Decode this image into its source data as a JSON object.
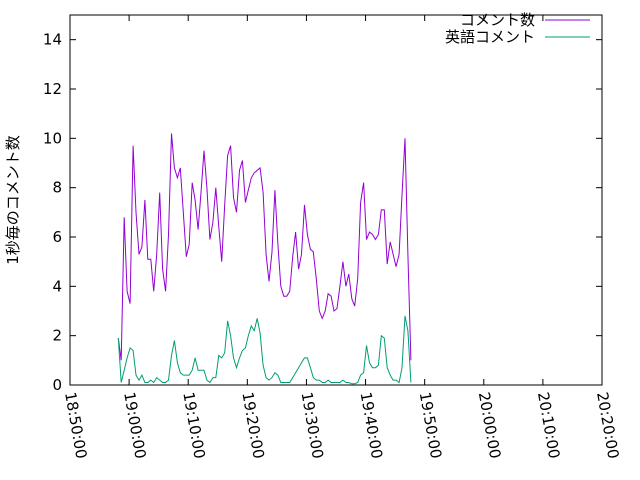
{
  "chart_data": {
    "type": "line",
    "ylabel": "1秒毎のコメント数",
    "xlabel": "",
    "ylim": [
      0,
      15
    ],
    "xlim": [
      "18:50:00",
      "20:20:00"
    ],
    "y_ticks": [
      "0",
      "2",
      "4",
      "6",
      "8",
      "10",
      "12",
      "14"
    ],
    "x_ticks": [
      "18:50:00",
      "19:00:00",
      "19:10:00",
      "19:20:00",
      "19:30:00",
      "19:40:00",
      "19:50:00",
      "20:00:00",
      "20:10:00",
      "20:20:00"
    ],
    "legend_position": "top-right",
    "series": [
      {
        "name": "コメント数",
        "color": "#9400d3",
        "points": [
          [
            "18:58:10",
            1.9
          ],
          [
            "18:58:40",
            1.0
          ],
          [
            "18:59:10",
            6.8
          ],
          [
            "18:59:40",
            3.8
          ],
          [
            "19:00:10",
            3.3
          ],
          [
            "19:00:40",
            9.7
          ],
          [
            "19:01:10",
            7.0
          ],
          [
            "19:01:40",
            5.3
          ],
          [
            "19:02:10",
            5.6
          ],
          [
            "19:02:40",
            7.5
          ],
          [
            "19:03:10",
            5.1
          ],
          [
            "19:03:40",
            5.1
          ],
          [
            "19:04:10",
            3.8
          ],
          [
            "19:04:40",
            5.3
          ],
          [
            "19:05:10",
            7.8
          ],
          [
            "19:05:40",
            4.7
          ],
          [
            "19:06:10",
            3.8
          ],
          [
            "19:06:40",
            6.1
          ],
          [
            "19:07:10",
            10.2
          ],
          [
            "19:07:40",
            8.8
          ],
          [
            "19:08:10",
            8.4
          ],
          [
            "19:08:40",
            8.8
          ],
          [
            "19:09:10",
            7.0
          ],
          [
            "19:09:40",
            5.2
          ],
          [
            "19:10:10",
            5.7
          ],
          [
            "19:10:40",
            8.2
          ],
          [
            "19:11:10",
            7.5
          ],
          [
            "19:11:40",
            6.3
          ],
          [
            "19:12:10",
            7.8
          ],
          [
            "19:12:40",
            9.5
          ],
          [
            "19:13:10",
            8.0
          ],
          [
            "19:13:40",
            5.9
          ],
          [
            "19:14:10",
            6.6
          ],
          [
            "19:14:40",
            8.0
          ],
          [
            "19:15:10",
            6.4
          ],
          [
            "19:15:40",
            5.0
          ],
          [
            "19:16:10",
            7.3
          ],
          [
            "19:16:40",
            9.3
          ],
          [
            "19:17:10",
            9.7
          ],
          [
            "19:17:40",
            7.6
          ],
          [
            "19:18:10",
            7.0
          ],
          [
            "19:18:40",
            8.7
          ],
          [
            "19:19:10",
            9.1
          ],
          [
            "19:19:40",
            7.4
          ],
          [
            "19:20:10",
            7.9
          ],
          [
            "19:20:40",
            8.4
          ],
          [
            "19:21:10",
            8.6
          ],
          [
            "19:21:40",
            8.7
          ],
          [
            "19:22:10",
            8.8
          ],
          [
            "19:22:40",
            7.8
          ],
          [
            "19:23:10",
            5.3
          ],
          [
            "19:23:40",
            4.2
          ],
          [
            "19:24:10",
            5.4
          ],
          [
            "19:24:40",
            7.9
          ],
          [
            "19:25:10",
            5.7
          ],
          [
            "19:25:40",
            4.0
          ],
          [
            "19:26:10",
            3.6
          ],
          [
            "19:26:40",
            3.6
          ],
          [
            "19:27:10",
            3.8
          ],
          [
            "19:27:40",
            5.2
          ],
          [
            "19:28:10",
            6.2
          ],
          [
            "19:28:40",
            4.7
          ],
          [
            "19:29:10",
            5.3
          ],
          [
            "19:29:40",
            7.3
          ],
          [
            "19:30:10",
            6.1
          ],
          [
            "19:30:40",
            5.5
          ],
          [
            "19:31:10",
            5.4
          ],
          [
            "19:31:40",
            4.3
          ],
          [
            "19:32:10",
            3.0
          ],
          [
            "19:32:40",
            2.7
          ],
          [
            "19:33:10",
            3.0
          ],
          [
            "19:33:40",
            3.7
          ],
          [
            "19:34:10",
            3.6
          ],
          [
            "19:34:40",
            3.0
          ],
          [
            "19:35:10",
            3.1
          ],
          [
            "19:35:40",
            4.0
          ],
          [
            "19:36:10",
            5.0
          ],
          [
            "19:36:40",
            4.0
          ],
          [
            "19:37:10",
            4.5
          ],
          [
            "19:37:40",
            3.5
          ],
          [
            "19:38:10",
            3.2
          ],
          [
            "19:38:40",
            4.3
          ],
          [
            "19:39:10",
            7.4
          ],
          [
            "19:39:40",
            8.2
          ],
          [
            "19:40:10",
            5.9
          ],
          [
            "19:40:40",
            6.2
          ],
          [
            "19:41:10",
            6.1
          ],
          [
            "19:41:40",
            5.9
          ],
          [
            "19:42:10",
            6.1
          ],
          [
            "19:42:40",
            7.1
          ],
          [
            "19:43:10",
            7.1
          ],
          [
            "19:43:40",
            4.9
          ],
          [
            "19:44:10",
            5.8
          ],
          [
            "19:44:40",
            5.3
          ],
          [
            "19:45:10",
            4.8
          ],
          [
            "19:45:40",
            5.3
          ],
          [
            "19:46:10",
            7.7
          ],
          [
            "19:46:40",
            10.0
          ],
          [
            "19:47:10",
            5.3
          ],
          [
            "19:47:40",
            1.0
          ]
        ]
      },
      {
        "name": "英語コメント",
        "color": "#009e73",
        "points": [
          [
            "18:58:10",
            1.9
          ],
          [
            "18:58:40",
            0.1
          ],
          [
            "18:59:10",
            0.6
          ],
          [
            "18:59:40",
            1.1
          ],
          [
            "19:00:10",
            1.5
          ],
          [
            "19:00:40",
            1.4
          ],
          [
            "19:01:10",
            0.4
          ],
          [
            "19:01:40",
            0.2
          ],
          [
            "19:02:10",
            0.4
          ],
          [
            "19:02:40",
            0.1
          ],
          [
            "19:03:10",
            0.1
          ],
          [
            "19:03:40",
            0.2
          ],
          [
            "19:04:10",
            0.1
          ],
          [
            "19:04:40",
            0.3
          ],
          [
            "19:05:10",
            0.2
          ],
          [
            "19:05:40",
            0.1
          ],
          [
            "19:06:10",
            0.1
          ],
          [
            "19:06:40",
            0.2
          ],
          [
            "19:07:10",
            1.2
          ],
          [
            "19:07:40",
            1.8
          ],
          [
            "19:08:10",
            0.9
          ],
          [
            "19:08:40",
            0.5
          ],
          [
            "19:09:10",
            0.4
          ],
          [
            "19:09:40",
            0.4
          ],
          [
            "19:10:10",
            0.4
          ],
          [
            "19:10:40",
            0.6
          ],
          [
            "19:11:10",
            1.1
          ],
          [
            "19:11:40",
            0.6
          ],
          [
            "19:12:10",
            0.6
          ],
          [
            "19:12:40",
            0.6
          ],
          [
            "19:13:10",
            0.2
          ],
          [
            "19:13:40",
            0.1
          ],
          [
            "19:14:10",
            0.3
          ],
          [
            "19:14:40",
            0.3
          ],
          [
            "19:15:10",
            1.2
          ],
          [
            "19:15:40",
            1.1
          ],
          [
            "19:16:10",
            1.3
          ],
          [
            "19:16:40",
            2.6
          ],
          [
            "19:17:10",
            2.0
          ],
          [
            "19:17:40",
            1.1
          ],
          [
            "19:18:10",
            0.7
          ],
          [
            "19:18:40",
            1.1
          ],
          [
            "19:19:10",
            1.4
          ],
          [
            "19:19:40",
            1.5
          ],
          [
            "19:20:10",
            2.0
          ],
          [
            "19:20:40",
            2.4
          ],
          [
            "19:21:10",
            2.2
          ],
          [
            "19:21:40",
            2.7
          ],
          [
            "19:22:10",
            2.1
          ],
          [
            "19:22:40",
            0.8
          ],
          [
            "19:23:10",
            0.3
          ],
          [
            "19:23:40",
            0.2
          ],
          [
            "19:24:10",
            0.3
          ],
          [
            "19:24:40",
            0.5
          ],
          [
            "19:25:10",
            0.4
          ],
          [
            "19:25:40",
            0.1
          ],
          [
            "19:26:10",
            0.1
          ],
          [
            "19:26:40",
            0.1
          ],
          [
            "19:27:10",
            0.1
          ],
          [
            "19:27:40",
            0.3
          ],
          [
            "19:28:10",
            0.5
          ],
          [
            "19:28:40",
            0.7
          ],
          [
            "19:29:10",
            0.9
          ],
          [
            "19:29:40",
            1.1
          ],
          [
            "19:30:10",
            1.1
          ],
          [
            "19:30:40",
            0.7
          ],
          [
            "19:31:10",
            0.3
          ],
          [
            "19:31:40",
            0.2
          ],
          [
            "19:32:10",
            0.2
          ],
          [
            "19:32:40",
            0.1
          ],
          [
            "19:33:10",
            0.1
          ],
          [
            "19:33:40",
            0.2
          ],
          [
            "19:34:10",
            0.1
          ],
          [
            "19:34:40",
            0.1
          ],
          [
            "19:35:10",
            0.1
          ],
          [
            "19:35:40",
            0.1
          ],
          [
            "19:36:10",
            0.2
          ],
          [
            "19:36:40",
            0.1
          ],
          [
            "19:37:10",
            0.1
          ],
          [
            "19:37:40",
            0.05
          ],
          [
            "19:38:10",
            0.05
          ],
          [
            "19:38:40",
            0.1
          ],
          [
            "19:39:10",
            0.4
          ],
          [
            "19:39:40",
            0.5
          ],
          [
            "19:40:10",
            1.6
          ],
          [
            "19:40:40",
            0.9
          ],
          [
            "19:41:10",
            0.7
          ],
          [
            "19:41:40",
            0.7
          ],
          [
            "19:42:10",
            0.8
          ],
          [
            "19:42:40",
            2.0
          ],
          [
            "19:43:10",
            1.9
          ],
          [
            "19:43:40",
            0.7
          ],
          [
            "19:44:10",
            0.4
          ],
          [
            "19:44:40",
            0.2
          ],
          [
            "19:45:10",
            0.2
          ],
          [
            "19:45:40",
            0.1
          ],
          [
            "19:46:10",
            0.7
          ],
          [
            "19:46:40",
            2.8
          ],
          [
            "19:47:10",
            2.2
          ],
          [
            "19:47:40",
            0.1
          ]
        ]
      }
    ]
  }
}
